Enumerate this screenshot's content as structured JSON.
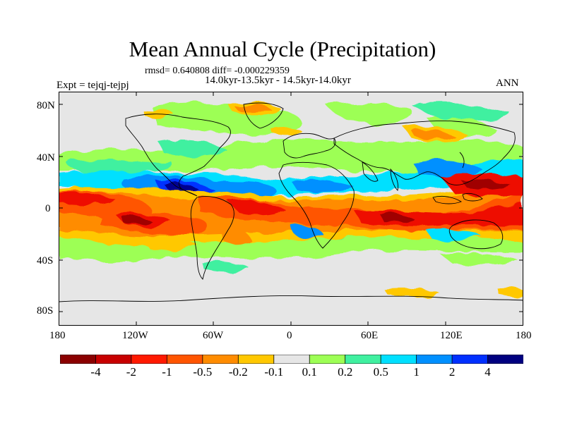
{
  "title": "Mean Annual Cycle (Precipitation)",
  "stats": "rmsd= 0.640808 diff= -0.000229359",
  "period": "14.0kyr-13.5kyr - 14.5kyr-14.0kyr",
  "experiment": "Expt = tejqj-tejpj",
  "season": "ANN",
  "y_ticks": [
    "80N",
    "40N",
    "0",
    "40S",
    "80S"
  ],
  "x_ticks": [
    "180",
    "120W",
    "60W",
    "0",
    "60E",
    "120E",
    "180"
  ],
  "colorbar": {
    "labels": [
      "-4",
      "-2",
      "-1",
      "-0.5",
      "-0.2",
      "-0.1",
      "0.1",
      "0.2",
      "0.5",
      "1",
      "2",
      "4"
    ],
    "colors": [
      "#8b0000",
      "#c80000",
      "#ff1a00",
      "#ff5500",
      "#ff8c00",
      "#ffc800",
      "#e6e6e6",
      "#9dff55",
      "#40f0a0",
      "#00e0ff",
      "#0090ff",
      "#0030ff",
      "#000080"
    ]
  },
  "palette": {
    "background": "#e6e6e6",
    "dark_red": "#a00000",
    "red": "#ee1100",
    "orange": "#ff7000",
    "gold": "#ffc800",
    "light_green": "#9dff55",
    "teal_green": "#40f0a0",
    "cyan": "#00e0ff",
    "blue": "#0090ff",
    "deep_blue": "#0030ff",
    "navy": "#000090"
  }
}
